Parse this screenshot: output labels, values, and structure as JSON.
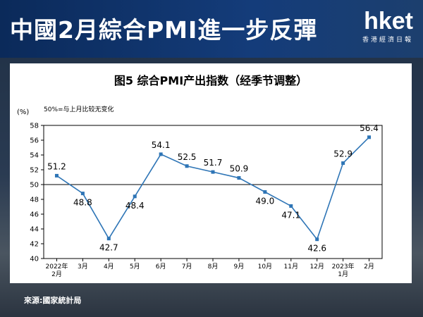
{
  "header": {
    "headline": "中國2月綜合PMI進一步反彈",
    "logo": "hket",
    "logo_sub": "香港經濟日報"
  },
  "footer": {
    "source": "來源:國家統計局"
  },
  "chart_data": {
    "type": "line",
    "title": "图5 综合PMI产出指数（经季节调整）",
    "ylabel": "(%)",
    "annotation": "50%=与上月比较无变化",
    "categories": [
      "2022年2月",
      "3月",
      "4月",
      "5月",
      "6月",
      "7月",
      "8月",
      "9月",
      "10月",
      "11月",
      "12月",
      "2023年1月",
      "2月"
    ],
    "category_lines": [
      [
        "2022年",
        "2月"
      ],
      [
        "3月"
      ],
      [
        "4月"
      ],
      [
        "5月"
      ],
      [
        "6月"
      ],
      [
        "7月"
      ],
      [
        "8月"
      ],
      [
        "9月"
      ],
      [
        "10月"
      ],
      [
        "11月"
      ],
      [
        "12月"
      ],
      [
        "2023年",
        "1月"
      ],
      [
        "2月"
      ]
    ],
    "series": [
      {
        "values": [
          51.2,
          48.8,
          42.7,
          48.4,
          54.1,
          52.5,
          51.7,
          50.9,
          49.0,
          47.1,
          42.6,
          52.9,
          56.4
        ]
      }
    ],
    "value_labels": [
      "51.2",
      "48.8",
      "42.7",
      "48.4",
      "54.1",
      "52.5",
      "51.7",
      "50.9",
      "49.0",
      "47.1",
      "42.6",
      "52.9",
      "56.4"
    ],
    "ylim": [
      40,
      58
    ],
    "yticks": [
      40,
      42,
      44,
      46,
      48,
      50,
      52,
      54,
      56,
      58
    ],
    "reference_line": 50,
    "line_color": "#2e75b6",
    "grid": false,
    "legend": "none"
  }
}
